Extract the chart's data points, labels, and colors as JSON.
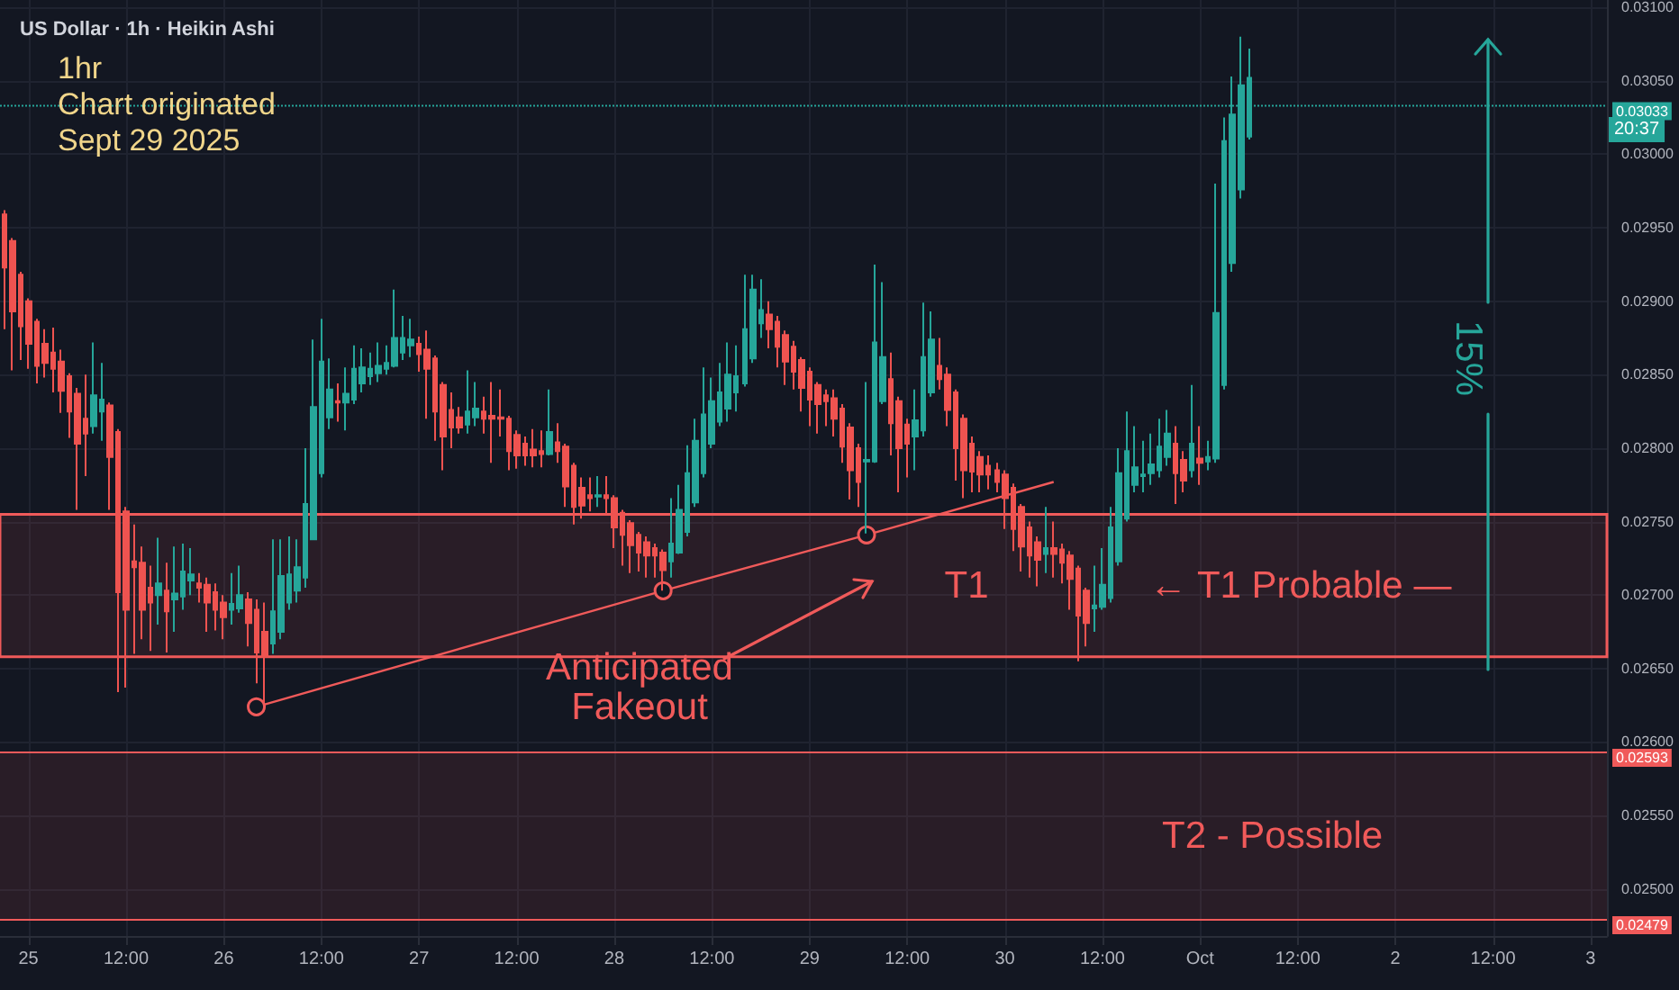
{
  "chart_data": {
    "type": "candlestick",
    "title": "US Dollar · 1h · Heikin Ashi",
    "x": [
      "2025-09-24T21:00",
      "2025-09-24T22:00",
      "2025-09-24T23:00",
      "2025-09-25T00:00",
      "2025-09-25T01:00",
      "2025-09-25T02:00",
      "2025-09-25T03:00",
      "2025-09-25T04:00",
      "2025-09-25T05:00",
      "2025-09-25T06:00",
      "2025-09-25T07:00",
      "2025-09-25T08:00",
      "2025-09-25T09:00",
      "2025-09-25T10:00",
      "2025-09-25T11:00",
      "2025-09-25T12:00",
      "2025-09-25T13:00",
      "2025-09-25T14:00",
      "2025-09-25T15:00",
      "2025-09-25T16:00",
      "2025-09-25T17:00",
      "2025-09-25T18:00",
      "2025-09-25T19:00",
      "2025-09-25T20:00",
      "2025-09-25T21:00",
      "2025-09-25T22:00",
      "2025-09-25T23:00",
      "2025-09-26T00:00",
      "2025-09-26T01:00",
      "2025-09-26T02:00",
      "2025-09-26T03:00",
      "2025-09-26T04:00",
      "2025-09-26T05:00",
      "2025-09-26T06:00",
      "2025-09-26T07:00",
      "2025-09-26T08:00",
      "2025-09-26T09:00",
      "2025-09-26T10:00",
      "2025-09-26T11:00",
      "2025-09-26T12:00",
      "2025-09-26T13:00",
      "2025-09-26T14:00",
      "2025-09-26T15:00",
      "2025-09-26T16:00",
      "2025-09-26T17:00",
      "2025-09-26T18:00",
      "2025-09-26T19:00",
      "2025-09-26T20:00",
      "2025-09-26T21:00",
      "2025-09-26T22:00",
      "2025-09-26T23:00",
      "2025-09-27T00:00",
      "2025-09-27T01:00",
      "2025-09-27T02:00",
      "2025-09-27T03:00",
      "2025-09-27T04:00",
      "2025-09-27T05:00",
      "2025-09-27T06:00",
      "2025-09-27T07:00",
      "2025-09-27T08:00",
      "2025-09-27T09:00",
      "2025-09-27T10:00",
      "2025-09-27T11:00",
      "2025-09-27T12:00",
      "2025-09-27T13:00",
      "2025-09-27T14:00",
      "2025-09-27T15:00",
      "2025-09-27T16:00",
      "2025-09-27T17:00",
      "2025-09-27T18:00",
      "2025-09-27T19:00",
      "2025-09-27T20:00",
      "2025-09-27T21:00",
      "2025-09-27T22:00",
      "2025-09-27T23:00",
      "2025-09-28T00:00",
      "2025-09-28T01:00",
      "2025-09-28T02:00",
      "2025-09-28T03:00",
      "2025-09-28T04:00",
      "2025-09-28T05:00",
      "2025-09-28T06:00",
      "2025-09-28T07:00",
      "2025-09-28T08:00",
      "2025-09-28T09:00",
      "2025-09-28T10:00",
      "2025-09-28T11:00",
      "2025-09-28T12:00",
      "2025-09-28T13:00",
      "2025-09-28T14:00",
      "2025-09-28T15:00",
      "2025-09-28T16:00",
      "2025-09-28T17:00",
      "2025-09-28T18:00",
      "2025-09-28T19:00",
      "2025-09-28T20:00",
      "2025-09-28T21:00",
      "2025-09-28T22:00",
      "2025-09-28T23:00",
      "2025-09-29T00:00",
      "2025-09-29T01:00",
      "2025-09-29T02:00",
      "2025-09-29T03:00",
      "2025-09-29T04:00",
      "2025-09-29T05:00",
      "2025-09-29T06:00",
      "2025-09-29T07:00",
      "2025-09-29T08:00",
      "2025-09-29T09:00",
      "2025-09-29T10:00",
      "2025-09-29T11:00",
      "2025-09-29T12:00",
      "2025-09-29T13:00",
      "2025-09-29T14:00",
      "2025-09-29T15:00",
      "2025-09-29T16:00",
      "2025-09-29T17:00",
      "2025-09-29T18:00",
      "2025-09-29T19:00",
      "2025-09-29T20:00",
      "2025-09-29T21:00",
      "2025-09-29T22:00",
      "2025-09-29T23:00",
      "2025-09-30T00:00",
      "2025-09-30T01:00",
      "2025-09-30T02:00",
      "2025-09-30T03:00",
      "2025-09-30T04:00",
      "2025-09-30T05:00",
      "2025-09-30T06:00",
      "2025-09-30T07:00",
      "2025-09-30T08:00",
      "2025-09-30T09:00",
      "2025-09-30T10:00",
      "2025-09-30T11:00",
      "2025-09-30T12:00",
      "2025-09-30T13:00",
      "2025-09-30T14:00",
      "2025-09-30T15:00",
      "2025-09-30T16:00",
      "2025-09-30T17:00",
      "2025-09-30T18:00",
      "2025-09-30T19:00",
      "2025-09-30T20:00",
      "2025-09-30T21:00",
      "2025-09-30T22:00",
      "2025-09-30T23:00",
      "2025-10-01T00:00",
      "2025-10-01T01:00",
      "2025-10-01T02:00",
      "2025-10-01T03:00",
      "2025-10-01T04:00",
      "2025-10-01T05:00",
      "2025-10-01T06:00"
    ],
    "ohlc": [
      [
        0.02959,
        0.02962,
        0.02881,
        0.02923
      ],
      [
        0.02941,
        0.02943,
        0.02853,
        0.02893
      ],
      [
        0.02918,
        0.0292,
        0.0286,
        0.02883
      ],
      [
        0.029,
        0.02902,
        0.02854,
        0.02871
      ],
      [
        0.02886,
        0.02888,
        0.02844,
        0.02856
      ],
      [
        0.02871,
        0.02881,
        0.02848,
        0.02858
      ],
      [
        0.02865,
        0.02882,
        0.02838,
        0.02854
      ],
      [
        0.02859,
        0.02867,
        0.02824,
        0.02839
      ],
      [
        0.02849,
        0.02851,
        0.02807,
        0.02825
      ],
      [
        0.02837,
        0.02841,
        0.02758,
        0.02803
      ],
      [
        0.0282,
        0.0285,
        0.02781,
        0.0281
      ],
      [
        0.02815,
        0.02872,
        0.0281,
        0.02836
      ],
      [
        0.02825,
        0.02858,
        0.02805,
        0.02833
      ],
      [
        0.02829,
        0.02831,
        0.02758,
        0.02794
      ],
      [
        0.02811,
        0.02813,
        0.02634,
        0.02702
      ],
      [
        0.02757,
        0.0276,
        0.02637,
        0.0269
      ],
      [
        0.02723,
        0.02748,
        0.0266,
        0.02719
      ],
      [
        0.02722,
        0.02733,
        0.0267,
        0.0269
      ],
      [
        0.02705,
        0.0272,
        0.02662,
        0.02695
      ],
      [
        0.027,
        0.02739,
        0.0268,
        0.02708
      ],
      [
        0.02703,
        0.02722,
        0.02661,
        0.02689
      ],
      [
        0.02697,
        0.02733,
        0.02675,
        0.02701
      ],
      [
        0.02699,
        0.02735,
        0.0269,
        0.02716
      ],
      [
        0.0271,
        0.02732,
        0.027,
        0.02714
      ],
      [
        0.02708,
        0.02715,
        0.02695,
        0.02705
      ],
      [
        0.02707,
        0.02712,
        0.02675,
        0.02695
      ],
      [
        0.02702,
        0.02708,
        0.02676,
        0.0269
      ],
      [
        0.02695,
        0.027,
        0.0267,
        0.02685
      ],
      [
        0.0269,
        0.02715,
        0.0268,
        0.02694
      ],
      [
        0.02691,
        0.0272,
        0.02688,
        0.027
      ],
      [
        0.02697,
        0.02702,
        0.02665,
        0.02681
      ],
      [
        0.0269,
        0.02697,
        0.0264,
        0.02661
      ],
      [
        0.02675,
        0.02695,
        0.02627,
        0.02658
      ],
      [
        0.02667,
        0.02738,
        0.0266,
        0.02689
      ],
      [
        0.02675,
        0.02738,
        0.0267,
        0.02713
      ],
      [
        0.02695,
        0.0274,
        0.0269,
        0.02714
      ],
      [
        0.02703,
        0.02738,
        0.02695,
        0.02719
      ],
      [
        0.02712,
        0.028,
        0.02705,
        0.02762
      ],
      [
        0.02738,
        0.02874,
        0.02738,
        0.02828
      ],
      [
        0.02783,
        0.02888,
        0.0278,
        0.02859
      ],
      [
        0.02821,
        0.02861,
        0.02813,
        0.0284
      ],
      [
        0.02832,
        0.02844,
        0.02818,
        0.02831
      ],
      [
        0.02831,
        0.02855,
        0.02812,
        0.02837
      ],
      [
        0.02833,
        0.0287,
        0.0283,
        0.02854
      ],
      [
        0.02844,
        0.02868,
        0.02838,
        0.02855
      ],
      [
        0.02849,
        0.02865,
        0.02843,
        0.02854
      ],
      [
        0.02851,
        0.02872,
        0.02845,
        0.02856
      ],
      [
        0.02854,
        0.0287,
        0.0285,
        0.02858
      ],
      [
        0.02856,
        0.02908,
        0.02855,
        0.02875
      ],
      [
        0.02865,
        0.0289,
        0.0286,
        0.02875
      ],
      [
        0.0287,
        0.02888,
        0.02862,
        0.02874
      ],
      [
        0.02871,
        0.02876,
        0.02852,
        0.02864
      ],
      [
        0.02867,
        0.0288,
        0.0282,
        0.02854
      ],
      [
        0.02861,
        0.02863,
        0.02805,
        0.02825
      ],
      [
        0.02843,
        0.02845,
        0.02785,
        0.02808
      ],
      [
        0.02826,
        0.02838,
        0.028,
        0.02814
      ],
      [
        0.02821,
        0.02828,
        0.0281,
        0.02814
      ],
      [
        0.02816,
        0.02853,
        0.0281,
        0.02825
      ],
      [
        0.02821,
        0.02845,
        0.02815,
        0.02827
      ],
      [
        0.02825,
        0.02835,
        0.0281,
        0.0282
      ],
      [
        0.02822,
        0.02845,
        0.0279,
        0.0282
      ],
      [
        0.02821,
        0.0284,
        0.02808,
        0.0282
      ],
      [
        0.0282,
        0.02822,
        0.02785,
        0.02798
      ],
      [
        0.02809,
        0.02812,
        0.02786,
        0.02795
      ],
      [
        0.02803,
        0.02808,
        0.02788,
        0.02795
      ],
      [
        0.02799,
        0.02813,
        0.02787,
        0.02795
      ],
      [
        0.02798,
        0.02812,
        0.02787,
        0.02796
      ],
      [
        0.02796,
        0.0284,
        0.02795,
        0.02811
      ],
      [
        0.02804,
        0.02817,
        0.0279,
        0.02798
      ],
      [
        0.02801,
        0.02803,
        0.0276,
        0.02774
      ],
      [
        0.02788,
        0.0279,
        0.02748,
        0.0276
      ],
      [
        0.02773,
        0.0278,
        0.02752,
        0.02761
      ],
      [
        0.02768,
        0.0278,
        0.02757,
        0.02766
      ],
      [
        0.02767,
        0.02781,
        0.0276,
        0.02768
      ],
      [
        0.02768,
        0.02781,
        0.02755,
        0.02766
      ],
      [
        0.02766,
        0.02768,
        0.02732,
        0.02746
      ],
      [
        0.02756,
        0.02758,
        0.0272,
        0.02741
      ],
      [
        0.02749,
        0.02751,
        0.02715,
        0.02734
      ],
      [
        0.02741,
        0.02743,
        0.02716,
        0.02729
      ],
      [
        0.02736,
        0.0274,
        0.02712,
        0.02727
      ],
      [
        0.02732,
        0.02735,
        0.02712,
        0.02727
      ],
      [
        0.02729,
        0.02731,
        0.02703,
        0.02717
      ],
      [
        0.02723,
        0.02766,
        0.02712,
        0.02735
      ],
      [
        0.02729,
        0.02775,
        0.02728,
        0.02758
      ],
      [
        0.02743,
        0.02802,
        0.0274,
        0.02783
      ],
      [
        0.02763,
        0.0282,
        0.0276,
        0.02805
      ],
      [
        0.02783,
        0.02855,
        0.0278,
        0.02823
      ],
      [
        0.02803,
        0.02848,
        0.028,
        0.02832
      ],
      [
        0.02818,
        0.02858,
        0.02815,
        0.02838
      ],
      [
        0.02827,
        0.02872,
        0.02818,
        0.0285
      ],
      [
        0.02838,
        0.0287,
        0.02825,
        0.02849
      ],
      [
        0.02844,
        0.02918,
        0.02842,
        0.02881
      ],
      [
        0.02861,
        0.02918,
        0.02858,
        0.02908
      ],
      [
        0.02885,
        0.02915,
        0.02875,
        0.02894
      ],
      [
        0.02891,
        0.029,
        0.02868,
        0.02881
      ],
      [
        0.02886,
        0.0289,
        0.02855,
        0.02869
      ],
      [
        0.02877,
        0.0288,
        0.02843,
        0.02859
      ],
      [
        0.02869,
        0.02873,
        0.0284,
        0.02852
      ],
      [
        0.0286,
        0.02862,
        0.02825,
        0.02841
      ],
      [
        0.02852,
        0.02855,
        0.02815,
        0.02833
      ],
      [
        0.02843,
        0.02845,
        0.0281,
        0.0283
      ],
      [
        0.02836,
        0.0284,
        0.02815,
        0.02832
      ],
      [
        0.02834,
        0.0284,
        0.02808,
        0.0282
      ],
      [
        0.02827,
        0.0283,
        0.0279,
        0.02801
      ],
      [
        0.02814,
        0.02817,
        0.02765,
        0.02785
      ],
      [
        0.028,
        0.02803,
        0.0276,
        0.02777
      ],
      [
        0.02791,
        0.02845,
        0.02742,
        0.02792
      ],
      [
        0.02791,
        0.02925,
        0.0279,
        0.02872
      ],
      [
        0.02832,
        0.02913,
        0.0283,
        0.02862
      ],
      [
        0.02847,
        0.02865,
        0.02795,
        0.02817
      ],
      [
        0.02832,
        0.02835,
        0.0277,
        0.028
      ],
      [
        0.02816,
        0.0282,
        0.0278,
        0.02803
      ],
      [
        0.02808,
        0.0284,
        0.02785,
        0.02819
      ],
      [
        0.02812,
        0.02899,
        0.02808,
        0.02862
      ],
      [
        0.02838,
        0.02893,
        0.02835,
        0.02874
      ],
      [
        0.02856,
        0.02875,
        0.0284,
        0.02847
      ],
      [
        0.0285,
        0.02855,
        0.02815,
        0.02826
      ],
      [
        0.02838,
        0.0284,
        0.02778,
        0.028
      ],
      [
        0.0282,
        0.02823,
        0.02766,
        0.02785
      ],
      [
        0.02803,
        0.02808,
        0.0277,
        0.02784
      ],
      [
        0.02794,
        0.02798,
        0.0277,
        0.02782
      ],
      [
        0.02788,
        0.02795,
        0.02772,
        0.02782
      ],
      [
        0.02785,
        0.0279,
        0.0277,
        0.02777
      ],
      [
        0.02782,
        0.02785,
        0.02745,
        0.02766
      ],
      [
        0.02773,
        0.02776,
        0.0273,
        0.02745
      ],
      [
        0.0276,
        0.02762,
        0.02716,
        0.02733
      ],
      [
        0.02746,
        0.0275,
        0.02712,
        0.02727
      ],
      [
        0.02736,
        0.0274,
        0.02706,
        0.02724
      ],
      [
        0.02728,
        0.0276,
        0.02715,
        0.02732
      ],
      [
        0.02732,
        0.0275,
        0.02712,
        0.02728
      ],
      [
        0.02731,
        0.02735,
        0.02708,
        0.02722
      ],
      [
        0.02727,
        0.0273,
        0.0269,
        0.02711
      ],
      [
        0.02718,
        0.0272,
        0.02655,
        0.02686
      ],
      [
        0.02703,
        0.02705,
        0.02665,
        0.02681
      ],
      [
        0.02691,
        0.0272,
        0.02675,
        0.02693
      ],
      [
        0.02692,
        0.02732,
        0.0269,
        0.02707
      ],
      [
        0.02698,
        0.0276,
        0.02695,
        0.02746
      ],
      [
        0.02723,
        0.028,
        0.0272,
        0.02783
      ],
      [
        0.02752,
        0.02825,
        0.0275,
        0.02798
      ],
      [
        0.02775,
        0.02815,
        0.0277,
        0.02787
      ],
      [
        0.02781,
        0.02805,
        0.0277,
        0.02782
      ],
      [
        0.02783,
        0.0281,
        0.02775,
        0.02789
      ],
      [
        0.02785,
        0.0282,
        0.0278,
        0.02801
      ],
      [
        0.02794,
        0.02826,
        0.02788,
        0.0281
      ],
      [
        0.02803,
        0.02815,
        0.02762,
        0.02783
      ],
      [
        0.02792,
        0.02798,
        0.0277,
        0.02778
      ],
      [
        0.02785,
        0.02843,
        0.0278,
        0.02803
      ],
      [
        0.02793,
        0.02815,
        0.02775,
        0.0279
      ],
      [
        0.02791,
        0.02805,
        0.02785,
        0.02794
      ],
      [
        0.02793,
        0.0298,
        0.0279,
        0.02892
      ],
      [
        0.02843,
        0.03025,
        0.0284,
        0.03009
      ],
      [
        0.02926,
        0.03053,
        0.0292,
        0.03027
      ],
      [
        0.02976,
        0.0308,
        0.0297,
        0.03047
      ],
      [
        0.03012,
        0.03072,
        0.0301,
        0.03052
      ]
    ],
    "colors": [
      "#ef5350",
      "#ef5350",
      "#ef5350",
      "#ef5350",
      "#ef5350",
      "#ef5350",
      "#ef5350",
      "#ef5350",
      "#ef5350",
      "#ef5350",
      "#ef5350",
      "#26a69a",
      "#26a69a",
      "#ef5350",
      "#ef5350",
      "#ef5350",
      "#ef5350",
      "#ef5350",
      "#ef5350",
      "#26a69a",
      "#ef5350",
      "#26a69a",
      "#26a69a",
      "#26a69a",
      "#ef5350",
      "#ef5350",
      "#ef5350",
      "#ef5350",
      "#26a69a",
      "#26a69a",
      "#ef5350",
      "#ef5350",
      "#ef5350",
      "#26a69a",
      "#26a69a",
      "#26a69a",
      "#26a69a",
      "#26a69a",
      "#26a69a",
      "#26a69a",
      "#26a69a",
      "#ef5350",
      "#26a69a",
      "#26a69a",
      "#26a69a",
      "#26a69a",
      "#26a69a",
      "#26a69a",
      "#26a69a",
      "#26a69a",
      "#26a69a",
      "#ef5350",
      "#ef5350",
      "#ef5350",
      "#ef5350",
      "#ef5350",
      "#ef5350",
      "#26a69a",
      "#26a69a",
      "#ef5350",
      "#ef5350",
      "#ef5350",
      "#ef5350",
      "#ef5350",
      "#ef5350",
      "#ef5350",
      "#ef5350",
      "#26a69a",
      "#ef5350",
      "#ef5350",
      "#ef5350",
      "#ef5350",
      "#ef5350",
      "#26a69a",
      "#ef5350",
      "#ef5350",
      "#ef5350",
      "#ef5350",
      "#ef5350",
      "#ef5350",
      "#ef5350",
      "#ef5350",
      "#26a69a",
      "#26a69a",
      "#26a69a",
      "#26a69a",
      "#26a69a",
      "#26a69a",
      "#26a69a",
      "#26a69a",
      "#26a69a",
      "#26a69a",
      "#26a69a",
      "#26a69a",
      "#ef5350",
      "#ef5350",
      "#ef5350",
      "#ef5350",
      "#ef5350",
      "#ef5350",
      "#ef5350",
      "#ef5350",
      "#ef5350",
      "#ef5350",
      "#ef5350",
      "#ef5350",
      "#26a69a",
      "#26a69a",
      "#26a69a",
      "#ef5350",
      "#ef5350",
      "#ef5350",
      "#26a69a",
      "#26a69a",
      "#26a69a",
      "#ef5350",
      "#ef5350",
      "#ef5350",
      "#ef5350",
      "#ef5350",
      "#ef5350",
      "#ef5350",
      "#ef5350",
      "#ef5350",
      "#ef5350",
      "#ef5350",
      "#ef5350",
      "#ef5350",
      "#26a69a",
      "#ef5350",
      "#ef5350",
      "#ef5350",
      "#ef5350",
      "#ef5350",
      "#26a69a",
      "#26a69a",
      "#26a69a",
      "#26a69a",
      "#26a69a",
      "#26a69a",
      "#26a69a",
      "#26a69a",
      "#26a69a",
      "#26a69a",
      "#ef5350",
      "#ef5350",
      "#26a69a",
      "#ef5350",
      "#26a69a",
      "#26a69a",
      "#26a69a",
      "#26a69a",
      "#26a69a",
      "#26a69a"
    ],
    "series": [
      {
        "type": "line",
        "color": "#f05a5a",
        "x": [
          "2025-09-26T04:00",
          "2025-09-28T06:00",
          "2025-09-29T07:00",
          "2025-09-30T06:00"
        ],
        "values": [
          0.02624,
          0.02703,
          0.02741,
          0.02777
        ],
        "marker": "circle"
      }
    ],
    "xlim": [
      "2025-09-24T20:30",
      "2025-10-03T02:00"
    ],
    "xticks": [
      {
        "value": "2025-09-25T00:00",
        "label": "25"
      },
      {
        "value": "2025-09-25T12:00",
        "label": "12:00"
      },
      {
        "value": "2025-09-26T00:00",
        "label": "26"
      },
      {
        "value": "2025-09-26T12:00",
        "label": "12:00"
      },
      {
        "value": "2025-09-27T00:00",
        "label": "27"
      },
      {
        "value": "2025-09-27T12:00",
        "label": "12:00"
      },
      {
        "value": "2025-09-28T00:00",
        "label": "28"
      },
      {
        "value": "2025-09-28T12:00",
        "label": "12:00"
      },
      {
        "value": "2025-09-29T00:00",
        "label": "29"
      },
      {
        "value": "2025-09-29T12:00",
        "label": "12:00"
      },
      {
        "value": "2025-09-30T00:00",
        "label": "30"
      },
      {
        "value": "2025-09-30T12:00",
        "label": "12:00"
      },
      {
        "value": "2025-10-01T00:00",
        "label": "Oct"
      },
      {
        "value": "2025-10-01T12:00",
        "label": "12:00"
      },
      {
        "value": "2025-10-02T00:00",
        "label": "2"
      },
      {
        "value": "2025-10-02T12:00",
        "label": "12:00"
      },
      {
        "value": "2025-10-03T00:00",
        "label": "3"
      }
    ],
    "ylim": [
      0.02468,
      0.03105
    ],
    "yticks": [
      {
        "value": 0.025,
        "label": "0.02500"
      },
      {
        "value": 0.0255,
        "label": "0.02550"
      },
      {
        "value": 0.026,
        "label": "0.02600"
      },
      {
        "value": 0.0265,
        "label": "0.02650"
      },
      {
        "value": 0.027,
        "label": "0.02700"
      },
      {
        "value": 0.0275,
        "label": "0.02750"
      },
      {
        "value": 0.028,
        "label": "0.02800"
      },
      {
        "value": 0.0285,
        "label": "0.02850"
      },
      {
        "value": 0.029,
        "label": "0.02900"
      },
      {
        "value": 0.0295,
        "label": "0.02950"
      },
      {
        "value": 0.03,
        "label": "0.03000"
      },
      {
        "value": 0.0305,
        "label": "0.03050"
      },
      {
        "value": 0.031,
        "label": "0.03100"
      }
    ],
    "grid": true,
    "ref_lines": [
      {
        "axis": "y",
        "value": 0.03033,
        "label": "0.03033",
        "color": "#26a69a",
        "line_style": "dotted"
      },
      {
        "axis": "y",
        "value": 0.02593,
        "label": "0.02593",
        "color": "#f05a5a",
        "line_style": "solid"
      },
      {
        "axis": "y",
        "value": 0.02479,
        "label": "0.02479",
        "color": "#f05a5a",
        "line_style": "solid"
      }
    ],
    "bands": [
      {
        "axis": "y",
        "from": 0.02658,
        "to": 0.02755,
        "label": "T1",
        "color": "#f05a5a"
      },
      {
        "axis": "y",
        "from": 0.02479,
        "to": 0.02593,
        "label": "T2 - Possible",
        "color": "#f05a5a"
      }
    ],
    "annotations": [
      "1hr\nChart originated\nSept 29 2025",
      "Anticipated\nFakeout",
      "← T1 Probable —",
      "15%",
      "20:37"
    ]
  }
}
